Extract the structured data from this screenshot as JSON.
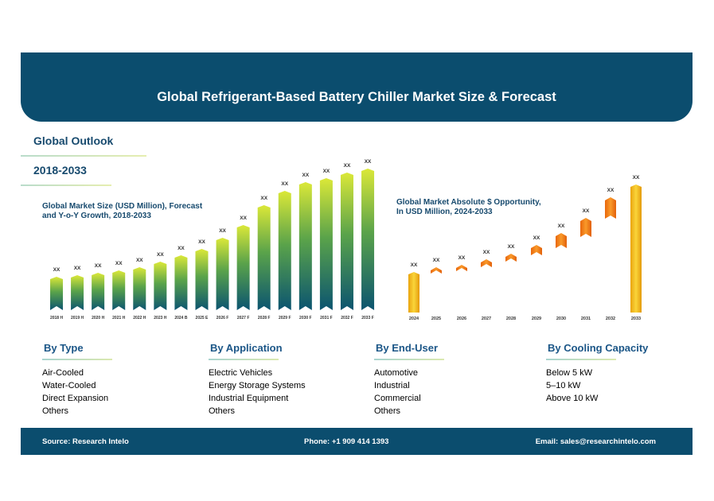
{
  "header": {
    "title": "Global Refrigerant-Based Battery Chiller Market Size & Forecast"
  },
  "sidebar": {
    "outlook": "Global Outlook",
    "period": "2018-2033"
  },
  "colors": {
    "header": "#0b4d6e",
    "heading_text": "#174a6e",
    "bar_top": "#d4e335",
    "bar_bottom": "#0b5470",
    "opp_start": "#f5c518",
    "opp_seg": "#f07b10"
  },
  "chart_data": [
    {
      "type": "bar",
      "title": "Global Market Size (USD Million), Forecast and Y-o-Y Growth, 2018-2033",
      "categories": [
        "2018 H",
        "2019 H",
        "2020 H",
        "2021 H",
        "2022 H",
        "2023 H",
        "2024 B",
        "2025 E",
        "2026 F",
        "2027 F",
        "2028 F",
        "2029 F",
        "2030 F",
        "2031 F",
        "2032 F",
        "2033 F"
      ],
      "values": [
        42,
        44,
        47,
        50,
        54,
        61,
        69,
        77,
        91,
        107,
        132,
        150,
        161,
        166,
        173,
        178
      ],
      "data_labels": [
        "XX",
        "XX",
        "XX",
        "XX",
        "XX",
        "XX",
        "XX",
        "XX",
        "XX",
        "XX",
        "XX",
        "XX",
        "XX",
        "XX",
        "XX",
        "XX"
      ],
      "values_note": "relative",
      "grid": false
    },
    {
      "type": "bar",
      "subtype": "waterfall",
      "title": "Global Market Absolute $ Opportunity, In USD Million, 2024-2033",
      "categories": [
        "2024",
        "2025",
        "2026",
        "2027",
        "2028",
        "2029",
        "2030",
        "2031",
        "2032",
        "2033"
      ],
      "ranges": [
        [
          0,
          51
        ],
        [
          49,
          57
        ],
        [
          52,
          60
        ],
        [
          57,
          67
        ],
        [
          64,
          74
        ],
        [
          72,
          85
        ],
        [
          81,
          100
        ],
        [
          95,
          119
        ],
        [
          118,
          145
        ],
        [
          0,
          161
        ]
      ],
      "data_labels": [
        "XX",
        "XX",
        "XX",
        "XX",
        "XX",
        "XX",
        "XX",
        "XX",
        "XX",
        "XX"
      ],
      "grid": false
    }
  ],
  "segments": [
    {
      "title": "By Type",
      "items": [
        "Air-Cooled",
        "Water-Cooled",
        "Direct Expansion",
        "Others"
      ]
    },
    {
      "title": "By Application",
      "items": [
        "Electric Vehicles",
        "Energy Storage Systems",
        "Industrial Equipment",
        "Others"
      ]
    },
    {
      "title": "By End-User",
      "items": [
        "Automotive",
        "Industrial",
        "Commercial",
        "Others"
      ]
    },
    {
      "title": "By Cooling Capacity",
      "items": [
        "Below 5 kW",
        "5–10 kW",
        "Above 10 kW"
      ]
    }
  ],
  "footer": {
    "source": "Source: Research Intelo",
    "phone": "Phone: +1 909 414 1393",
    "email": "Email: sales@researchintelo.com"
  }
}
